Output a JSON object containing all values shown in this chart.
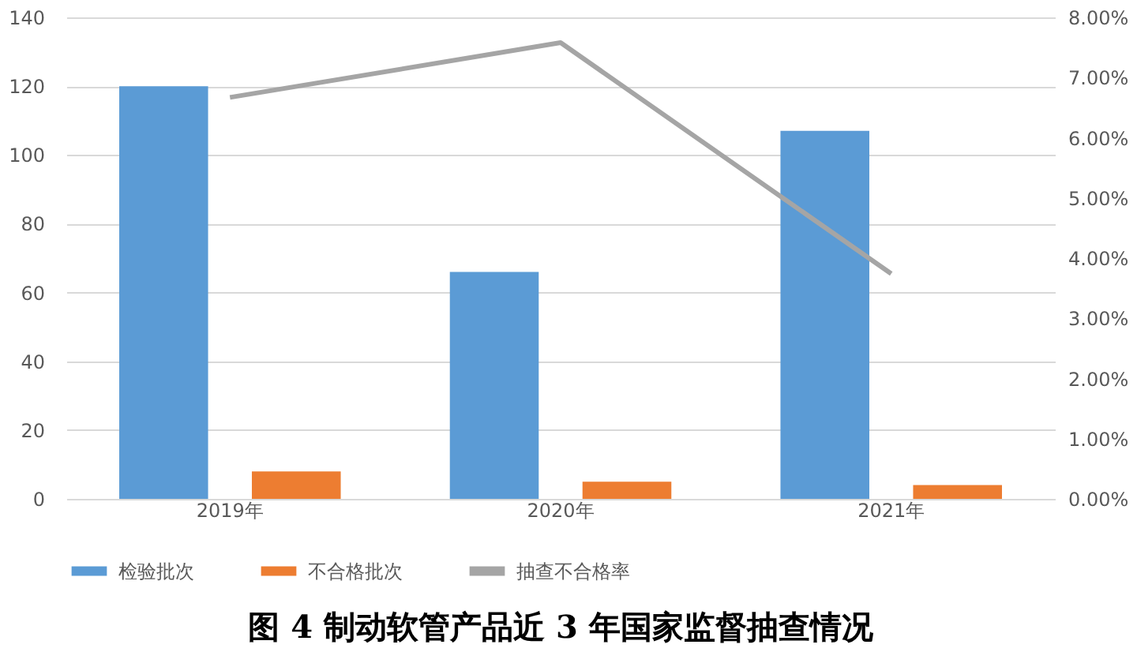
{
  "chart_data": {
    "type": "bar",
    "title": "图 4  制动软管产品近 3 年国家监督抽查情况",
    "categories": [
      "2019年",
      "2020年",
      "2021年"
    ],
    "series": [
      {
        "name": "检验批次",
        "color": "#5b9bd5",
        "values": [
          120,
          66,
          107
        ]
      },
      {
        "name": "不合格批次",
        "color": "#ed7d31",
        "values": [
          8,
          5,
          4
        ]
      },
      {
        "name": "抽查不合格率",
        "color": "#a5a5a5",
        "values": [
          6.67,
          7.58,
          3.74
        ],
        "type": "line",
        "axis": "y2"
      }
    ],
    "ylim": [
      0,
      140
    ],
    "yticks": [
      0,
      20,
      40,
      60,
      80,
      100,
      120,
      140
    ],
    "y2lim": [
      0,
      8
    ],
    "y2ticks": [
      {
        "value": 0,
        "label": "0.00%"
      },
      {
        "value": 1,
        "label": "1.00%"
      },
      {
        "value": 2,
        "label": "2.00%"
      },
      {
        "value": 3,
        "label": "3.00%"
      },
      {
        "value": 4,
        "label": "4.00%"
      },
      {
        "value": 5,
        "label": "5.00%"
      },
      {
        "value": 6,
        "label": "6.00%"
      },
      {
        "value": 7,
        "label": "7.00%"
      },
      {
        "value": 8,
        "label": "8.00%"
      }
    ],
    "grid": "y",
    "legend": "bottom",
    "marker": "none"
  }
}
